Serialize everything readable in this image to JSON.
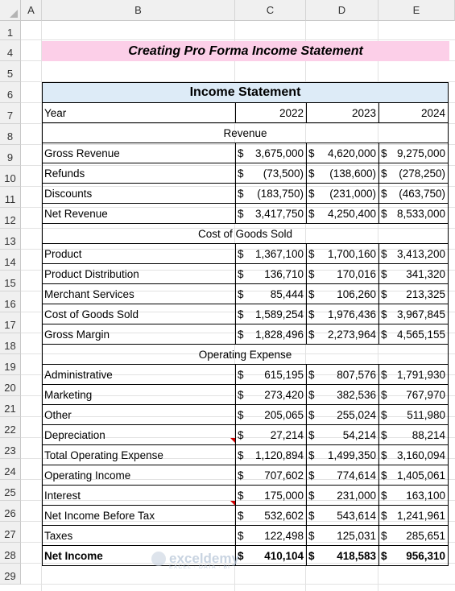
{
  "columns": [
    "A",
    "B",
    "C",
    "D",
    "E"
  ],
  "rows": [
    "1",
    "4",
    "5",
    "6",
    "7",
    "8",
    "9",
    "10",
    "11",
    "12",
    "13",
    "14",
    "15",
    "16",
    "17",
    "18",
    "19",
    "20",
    "21",
    "22",
    "23",
    "24",
    "25",
    "26",
    "27",
    "28",
    "29"
  ],
  "title": "Creating Pro Forma Income Statement",
  "statement": {
    "header": "Income Statement",
    "year_label": "Year",
    "years": [
      "2022",
      "2023",
      "2024"
    ],
    "sections": {
      "revenue": "Revenue",
      "cogs": "Cost of Goods Sold",
      "opex": "Operating Expense"
    },
    "lines": [
      {
        "label": "Gross Revenue",
        "v": [
          [
            "$",
            "3,675,000"
          ],
          [
            "$",
            "4,620,000"
          ],
          [
            "$",
            "9,275,000"
          ]
        ]
      },
      {
        "label": "Refunds",
        "v": [
          [
            "$",
            "(73,500)"
          ],
          [
            "$",
            "(138,600)"
          ],
          [
            "$",
            "(278,250)"
          ]
        ]
      },
      {
        "label": "Discounts",
        "v": [
          [
            "$",
            "(183,750)"
          ],
          [
            "$",
            "(231,000)"
          ],
          [
            "$",
            "(463,750)"
          ]
        ]
      },
      {
        "label": "Net Revenue",
        "v": [
          [
            "$",
            "3,417,750"
          ],
          [
            "$",
            "4,250,400"
          ],
          [
            "$",
            "8,533,000"
          ]
        ]
      },
      {
        "label": "Product",
        "v": [
          [
            "$",
            "1,367,100"
          ],
          [
            "$",
            "1,700,160"
          ],
          [
            "$",
            "3,413,200"
          ]
        ]
      },
      {
        "label": "Product Distribution",
        "v": [
          [
            "$",
            "136,710"
          ],
          [
            "$",
            "170,016"
          ],
          [
            "$",
            "341,320"
          ]
        ]
      },
      {
        "label": "Merchant Services",
        "v": [
          [
            "$",
            "85,444"
          ],
          [
            "$",
            "106,260"
          ],
          [
            "$",
            "213,325"
          ]
        ]
      },
      {
        "label": "Cost of Goods Sold",
        "v": [
          [
            "$",
            "1,589,254"
          ],
          [
            "$",
            "1,976,436"
          ],
          [
            "$",
            "3,967,845"
          ]
        ]
      },
      {
        "label": "Gross Margin",
        "v": [
          [
            "$",
            "1,828,496"
          ],
          [
            "$",
            "2,273,964"
          ],
          [
            "$",
            "4,565,155"
          ]
        ]
      },
      {
        "label": "Administrative",
        "v": [
          [
            "$",
            "615,195"
          ],
          [
            "$",
            "807,576"
          ],
          [
            "$",
            "1,791,930"
          ]
        ]
      },
      {
        "label": "Marketing",
        "v": [
          [
            "$",
            "273,420"
          ],
          [
            "$",
            "382,536"
          ],
          [
            "$",
            "767,970"
          ]
        ]
      },
      {
        "label": "Other",
        "v": [
          [
            "$",
            "205,065"
          ],
          [
            "$",
            "255,024"
          ],
          [
            "$",
            "511,980"
          ]
        ]
      },
      {
        "label": "Depreciation",
        "v": [
          [
            "$",
            "27,214"
          ],
          [
            "$",
            "54,214"
          ],
          [
            "$",
            "88,214"
          ]
        ]
      },
      {
        "label": "Total Operating Expense",
        "v": [
          [
            "$",
            "1,120,894"
          ],
          [
            "$",
            "1,499,350"
          ],
          [
            "$",
            "3,160,094"
          ]
        ]
      },
      {
        "label": "Operating Income",
        "v": [
          [
            "$",
            "707,602"
          ],
          [
            "$",
            "774,614"
          ],
          [
            "$",
            "1,405,061"
          ]
        ]
      },
      {
        "label": "Interest",
        "v": [
          [
            "$",
            "175,000"
          ],
          [
            "$",
            "231,000"
          ],
          [
            "$",
            "163,100"
          ]
        ]
      },
      {
        "label": "Net Income Before Tax",
        "v": [
          [
            "$",
            "532,602"
          ],
          [
            "$",
            "543,614"
          ],
          [
            "$",
            "1,241,961"
          ]
        ]
      },
      {
        "label": "Taxes",
        "v": [
          [
            "$",
            "122,498"
          ],
          [
            "$",
            "125,031"
          ],
          [
            "$",
            "285,651"
          ]
        ]
      },
      {
        "label": "Net Income",
        "v": [
          [
            "$",
            "410,104"
          ],
          [
            "$",
            "418,583"
          ],
          [
            "$",
            "956,310"
          ]
        ]
      }
    ]
  },
  "watermark": {
    "brand": "exceldemy",
    "tagline": "EXCEL · DATA · BI"
  }
}
